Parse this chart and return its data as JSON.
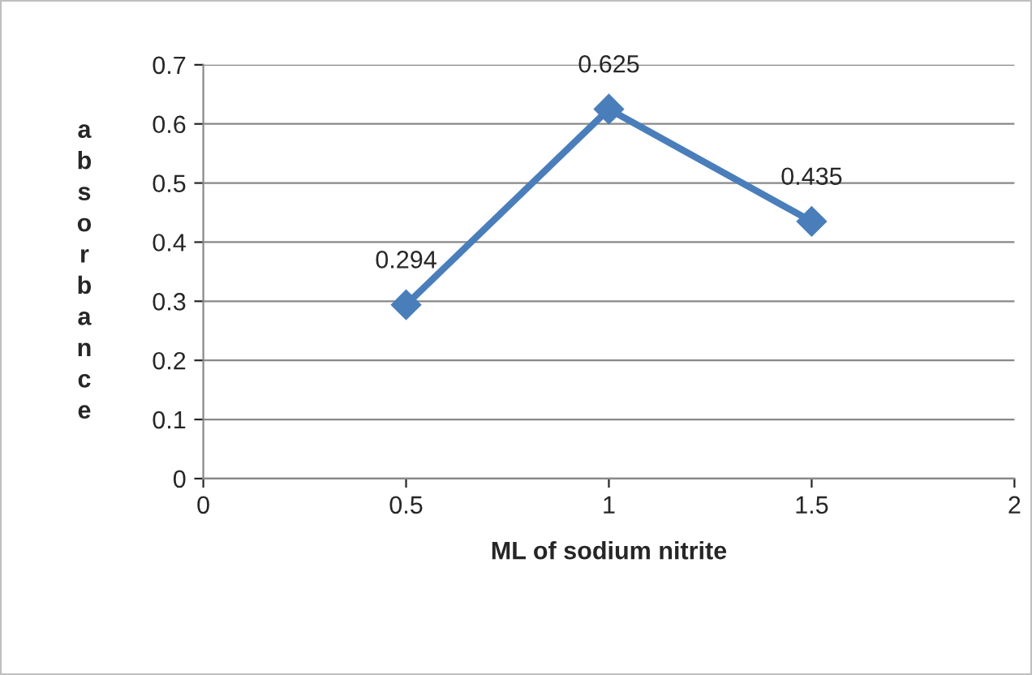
{
  "chart_data": {
    "type": "line",
    "xlabel": "ML of sodium nitrite",
    "ylabel": "absorbance",
    "x": [
      0.5,
      1,
      1.5
    ],
    "series": [
      {
        "color": "#4a7ebb",
        "values": [
          0.294,
          0.625,
          0.435
        ]
      }
    ],
    "xlim": [
      0,
      2
    ],
    "xticks": [
      0,
      0.5,
      1,
      1.5,
      2
    ],
    "ylim": [
      0,
      0.7
    ],
    "yticks": [
      0,
      0.1,
      0.2,
      0.3,
      0.4,
      0.5,
      0.6,
      0.7
    ],
    "grid": "y",
    "marker": "diamond",
    "line_style": "solid",
    "data_labels": true,
    "legend": false
  }
}
